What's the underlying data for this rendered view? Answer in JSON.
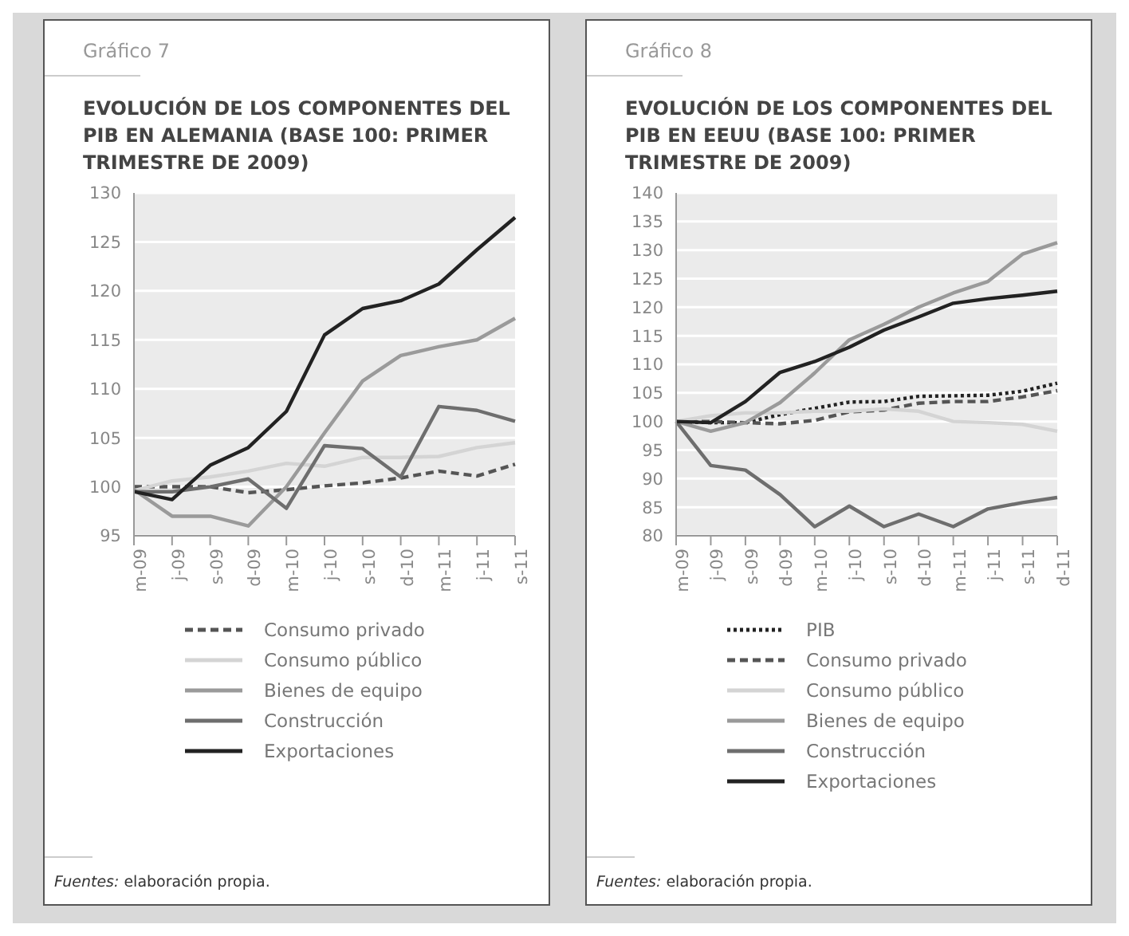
{
  "chart_data": [
    {
      "type": "line",
      "subtitle": "Gráfico 7",
      "title": "EVOLUCIÓN DE LOS COMPONENTES DEL PIB EN ALEMANIA (BASE 100: PRIMER TRIMESTRE DE 2009)",
      "categories": [
        "m-09",
        "j-09",
        "s-09",
        "d-09",
        "m-10",
        "j-10",
        "s-10",
        "d-10",
        "m-11",
        "j-11",
        "s-11"
      ],
      "ylim": [
        95,
        130
      ],
      "yticks": [
        95,
        100,
        105,
        110,
        115,
        120,
        125,
        130
      ],
      "grid": "y",
      "legend": "bottom",
      "annotations": [
        "Fuentes: elaboración propia."
      ],
      "series": [
        {
          "name": "Consumo privado",
          "color": "#555555",
          "line_style": "dashed",
          "values": [
            100,
            100,
            100,
            99.4,
            99.7,
            100.1,
            100.4,
            100.9,
            101.6,
            101.1,
            102.3
          ]
        },
        {
          "name": "Consumo público",
          "color": "#d4d4d4",
          "line_style": "solid",
          "values": [
            99.6,
            100.6,
            101.0,
            101.6,
            102.4,
            102.1,
            103.0,
            103.0,
            103.1,
            104.0,
            104.5
          ]
        },
        {
          "name": "Bienes de equipo",
          "color": "#9a9a9a",
          "line_style": "solid",
          "values": [
            99.7,
            97.0,
            97.0,
            96.0,
            100.0,
            105.5,
            110.8,
            113.4,
            114.3,
            115.0,
            117.2
          ]
        },
        {
          "name": "Construcción",
          "color": "#6e6e6e",
          "line_style": "solid",
          "values": [
            99.5,
            99.5,
            100.0,
            100.8,
            97.8,
            104.2,
            103.9,
            101.0,
            108.2,
            107.8,
            106.7
          ]
        },
        {
          "name": "Exportaciones",
          "color": "#222222",
          "line_style": "solid",
          "values": [
            99.5,
            98.7,
            102.2,
            104.0,
            107.7,
            115.5,
            118.2,
            119.0,
            120.7,
            124.2,
            127.5
          ]
        }
      ]
    },
    {
      "type": "line",
      "subtitle": "Gráfico 8",
      "title": "EVOLUCIÓN DE LOS COMPONENTES DEL PIB EN EEUU (BASE 100: PRIMER TRIMESTRE DE 2009)",
      "categories": [
        "m-09",
        "j-09",
        "s-09",
        "d-09",
        "m-10",
        "j-10",
        "s-10",
        "d-10",
        "m-11",
        "j-11",
        "s-11",
        "d-11"
      ],
      "ylim": [
        80,
        140
      ],
      "yticks": [
        80,
        85,
        90,
        95,
        100,
        105,
        110,
        115,
        120,
        125,
        130,
        135,
        140
      ],
      "grid": "y",
      "legend": "bottom",
      "annotations": [
        "Fuentes: elaboración propia."
      ],
      "series": [
        {
          "name": "PIB",
          "color": "#222222",
          "line_style": "dotted",
          "values": [
            100,
            99.8,
            99.8,
            101.2,
            102.3,
            103.4,
            103.5,
            104.4,
            104.5,
            104.6,
            105.3,
            106.7
          ]
        },
        {
          "name": "Consumo privado",
          "color": "#555555",
          "line_style": "dashed",
          "values": [
            100,
            100,
            99.8,
            99.6,
            100.2,
            101.7,
            102.0,
            103.2,
            103.5,
            103.5,
            104.3,
            105.4
          ]
        },
        {
          "name": "Consumo público",
          "color": "#d4d4d4",
          "line_style": "solid",
          "values": [
            100,
            101,
            101.5,
            101.5,
            101.8,
            101.8,
            102.2,
            101.8,
            100.0,
            99.8,
            99.5,
            98.3
          ]
        },
        {
          "name": "Bienes de equipo",
          "color": "#9a9a9a",
          "line_style": "solid",
          "values": [
            100,
            98.3,
            99.8,
            103.3,
            108.5,
            114.3,
            117.0,
            120.0,
            122.5,
            124.5,
            129.3,
            131.3
          ]
        },
        {
          "name": "Construcción",
          "color": "#6e6e6e",
          "line_style": "solid",
          "values": [
            100,
            92.3,
            91.5,
            87.2,
            81.6,
            85.2,
            81.6,
            83.8,
            81.6,
            84.7,
            85.8,
            86.7
          ]
        },
        {
          "name": "Exportaciones",
          "color": "#222222",
          "line_style": "solid",
          "values": [
            100,
            99.8,
            103.5,
            108.6,
            110.5,
            113.0,
            116.0,
            118.3,
            120.7,
            121.5,
            122.1,
            122.8
          ]
        }
      ]
    }
  ]
}
